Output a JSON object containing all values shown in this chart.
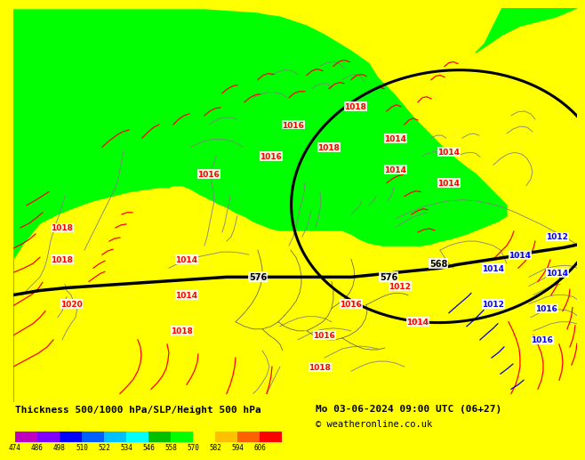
{
  "title_left": "Thickness 500/1000 hPa/SLP/Height 500 hPa",
  "title_right": "Mo 03-06-2024 09:00 UTC (06+27)",
  "copyright": "© weatheronline.co.uk",
  "colorbar_values": [
    474,
    486,
    498,
    510,
    522,
    534,
    546,
    558,
    570,
    582,
    594,
    606
  ],
  "colorbar_colors": [
    "#c000c0",
    "#8000ff",
    "#0000ff",
    "#0060ff",
    "#00c0ff",
    "#00ffff",
    "#00c000",
    "#00ff00",
    "#ffff00",
    "#ffc000",
    "#ff6000",
    "#ff0000"
  ],
  "bg_color": "#ffff00",
  "yellow_region_color": "#ffff00",
  "green_region_color": "#00ff00",
  "border_color": "#808080",
  "isobar_red_color": "#ff0000",
  "isobar_blue_color": "#0000cc",
  "contour_black_color": "#000000"
}
